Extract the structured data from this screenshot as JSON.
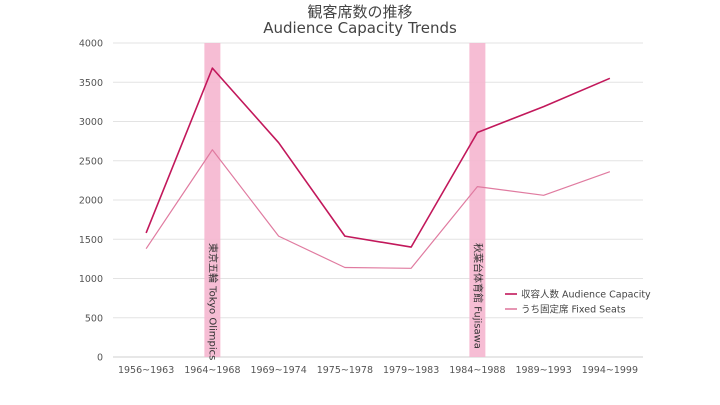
{
  "chart_data": {
    "type": "line",
    "title_ja": "観客席数の推移",
    "title_en": "Audience Capacity Trends",
    "categories": [
      "1956~1963",
      "1964~1968",
      "1969~1974",
      "1975~1978",
      "1979~1983",
      "1984~1988",
      "1989~1993",
      "1994~1999"
    ],
    "ylim": [
      0,
      4000
    ],
    "yticks": [
      0,
      500,
      1000,
      1500,
      2000,
      2500,
      3000,
      3500,
      4000
    ],
    "grid": "horizontal",
    "legend_position": "right",
    "series": [
      {
        "name": "収容人数 Audience Capacity",
        "color": "#c2185b",
        "values": [
          1580,
          3680,
          2730,
          1540,
          1400,
          2860,
          3190,
          3550
        ]
      },
      {
        "name": "うち固定席 Fixed Seats",
        "color": "#e07ba0",
        "values": [
          1380,
          2640,
          1540,
          1140,
          1130,
          2170,
          2060,
          2360
        ]
      }
    ],
    "highlights": [
      {
        "category": "1964~1968",
        "label": "東京五輪 Tokyo Olimpics",
        "color": "#f5b6cf"
      },
      {
        "category": "1984~1988",
        "label": "秋葉台体育館 Fujisawa",
        "color": "#f5b6cf"
      }
    ]
  }
}
